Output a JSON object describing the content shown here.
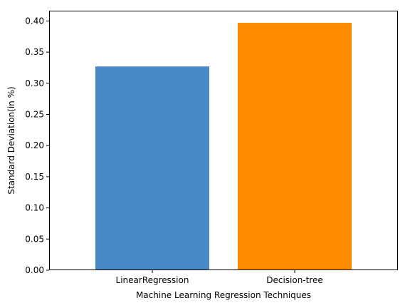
{
  "chart_data": {
    "type": "bar",
    "categories": [
      "LinearRegression",
      "Decision-tree"
    ],
    "values": [
      0.327,
      0.397
    ],
    "colors": [
      "#4a89c8",
      "#ff8c00"
    ],
    "title": "",
    "xlabel": "Machine Learning Regression Techniques",
    "ylabel": "Standard Deviation(in %)",
    "ylim": [
      0,
      0.4165
    ],
    "yticks": [
      0.0,
      0.05,
      0.1,
      0.15,
      0.2,
      0.25,
      0.3,
      0.35,
      0.4
    ],
    "ytick_labels": [
      "0.00",
      "0.05",
      "0.10",
      "0.15",
      "0.20",
      "0.25",
      "0.30",
      "0.35",
      "0.40"
    ],
    "grid": false,
    "legend": "none"
  }
}
